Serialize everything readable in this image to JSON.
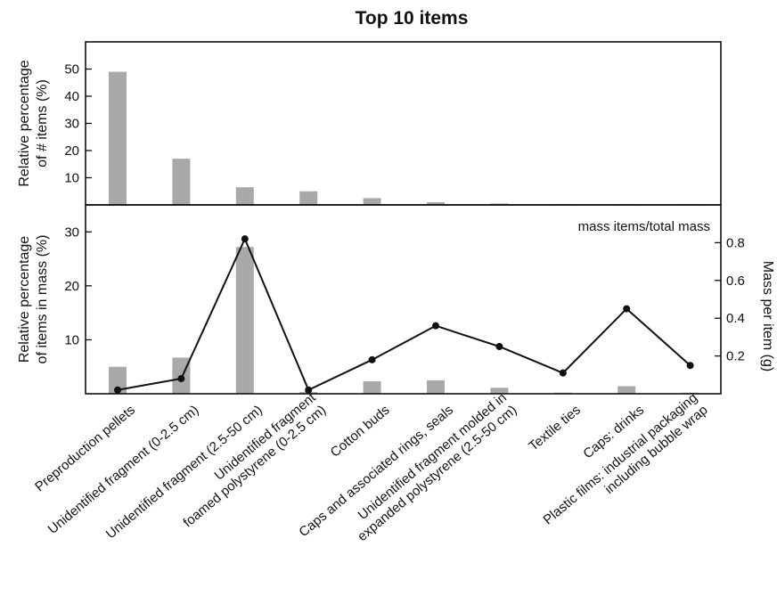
{
  "chart_data": {
    "type": "bar",
    "title": "Top 10 items",
    "categories": [
      [
        "Preproduction pellets"
      ],
      [
        "Unidentified fragment (0-2.5 cm)"
      ],
      [
        "Unidentified fragment (2.5-50 cm)"
      ],
      [
        "Unidentified fragment",
        "foamed polystyrene (0-2.5 cm)"
      ],
      [
        "Cotton buds"
      ],
      [
        "Caps and associated rings, seals"
      ],
      [
        "Unidentified fragment molded in",
        "expanded polystyrene (2.5-50 cm)"
      ],
      [
        "Textile ties"
      ],
      [
        "Caps: drinks"
      ],
      [
        "Plastic films: industrial packaging",
        "including bubble wrap"
      ]
    ],
    "top_panel": {
      "ylabel": [
        "Relative percentage",
        "of # items (%)"
      ],
      "ylim": [
        0,
        60
      ],
      "yticks": [
        10,
        20,
        30,
        40,
        50
      ],
      "values": [
        49,
        17,
        6.5,
        5,
        2.5,
        1,
        0.5,
        0.3,
        0.3,
        0.3
      ]
    },
    "bottom_panel": {
      "ylabel": [
        "Relative percentage",
        "of items in mass (%)"
      ],
      "ylim": [
        0,
        35
      ],
      "yticks": [
        10,
        20,
        30
      ],
      "values": [
        5,
        6.7,
        27.2,
        0.3,
        2.3,
        2.5,
        1.1,
        0.2,
        1.4,
        0.2
      ],
      "annotation": "mass items/total mass",
      "y2label": "Mass per item (g)",
      "y2lim": [
        0,
        1.0
      ],
      "y2ticks": [
        0.2,
        0.4,
        0.6,
        0.8
      ],
      "y2ticklabels": [
        "0.2",
        "0.4",
        "0.6",
        "0.8"
      ],
      "line_values": [
        0.02,
        0.08,
        0.82,
        0.02,
        0.18,
        0.36,
        0.25,
        0.11,
        0.45,
        0.15
      ]
    },
    "bar_color": "#a9a9a9",
    "line_color": "#111111",
    "grid": false
  }
}
